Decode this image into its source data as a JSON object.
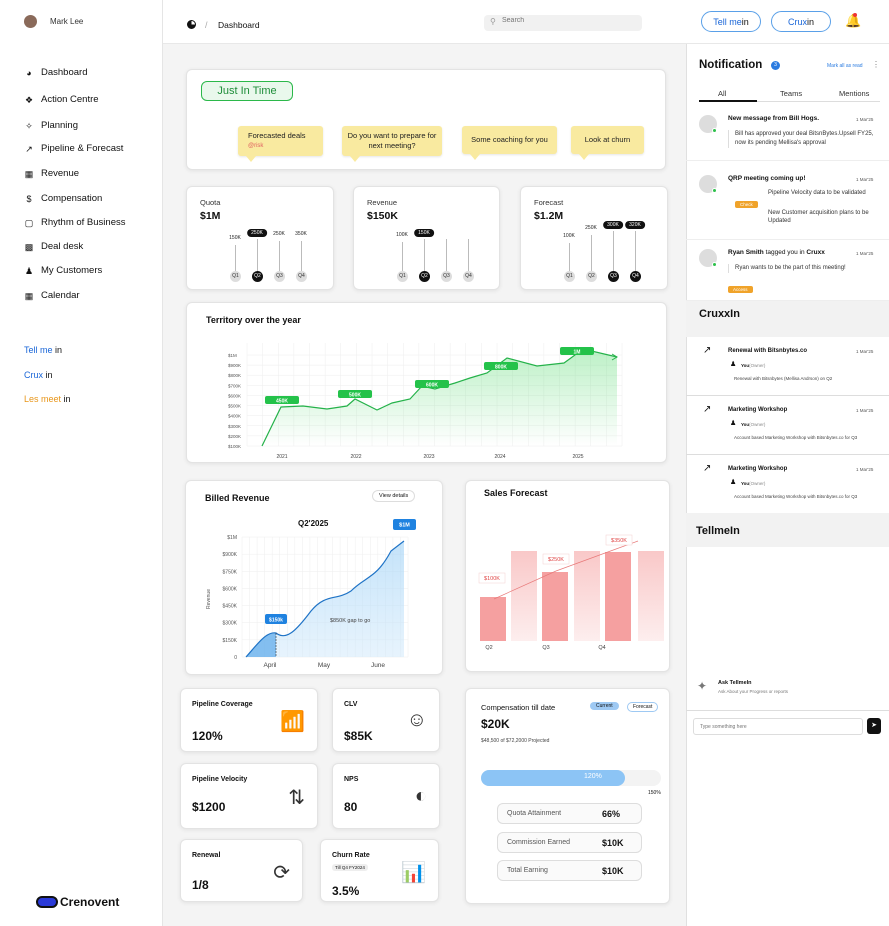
{
  "user": {
    "name": "Mark Lee"
  },
  "nav": [
    {
      "label": "Dashboard",
      "icon": "pie-icon"
    },
    {
      "label": "Action Centre",
      "icon": "action-icon"
    },
    {
      "label": "Planning",
      "icon": "planning-icon"
    },
    {
      "label": "Pipeline & Forecast",
      "icon": "trend-icon"
    },
    {
      "label": "Revenue",
      "icon": "revenue-icon"
    },
    {
      "label": "Compensation",
      "icon": "dollar-icon"
    },
    {
      "label": "Rhythm of Business",
      "icon": "rhythm-icon"
    },
    {
      "label": "Deal desk",
      "icon": "deal-icon"
    },
    {
      "label": "My Customers",
      "icon": "user-icon"
    },
    {
      "label": "Calendar",
      "icon": "calendar-icon"
    }
  ],
  "links": [
    {
      "a": "Tell me",
      "b": " in",
      "color": "#1a66d8"
    },
    {
      "a": "Crux",
      "b": " in",
      "color": "#1a66d8"
    },
    {
      "a": "Les meet",
      "b": " in",
      "color": "#e8961a"
    }
  ],
  "brand": "Crenovent",
  "breadcrumb": {
    "sep": "/",
    "page": "Dashboard"
  },
  "search": {
    "placeholder": "Search"
  },
  "top_buttons": [
    {
      "a": "Tell me",
      "b": " in"
    },
    {
      "a": "Crux",
      "b": " in"
    }
  ],
  "jit": {
    "title": "Just In Time",
    "notes": [
      {
        "text": "Forecasted deals",
        "sub": "@risk"
      },
      {
        "text": "Do you want to prepare for next meeting?"
      },
      {
        "text": "Some coaching for you"
      },
      {
        "text": "Look at churn"
      }
    ]
  },
  "quarters": [
    {
      "title": "Quota",
      "value": "$1M",
      "labels": [
        "150K",
        "250K",
        "250K",
        "350K"
      ],
      "active": 1
    },
    {
      "title": "Revenue",
      "value": "$150K",
      "labels": [
        "100K",
        "150K",
        "",
        ""
      ],
      "active": 1
    },
    {
      "title": "Forecast",
      "value": "$1.2M",
      "labels": [
        "100K",
        "250K",
        "300K",
        "320K"
      ],
      "active": 2
    }
  ],
  "qnames": [
    "Q1",
    "Q2",
    "Q3",
    "Q4"
  ],
  "territory": {
    "title": "Territory over the year",
    "years": [
      "2021",
      "2022",
      "2023",
      "2024",
      "2025"
    ],
    "yticks": [
      "$1M",
      "$900K",
      "$800K",
      "$700K",
      "$600K",
      "$500K",
      "$400K",
      "$300K",
      "$200K",
      "$100K"
    ],
    "badges": [
      "450K",
      "500K",
      "600K",
      "800K",
      "1M"
    ]
  },
  "billed": {
    "title": "Billed Revenue",
    "button": "View details",
    "period": "Q2'2025",
    "ylabel": "Revenue",
    "yticks": [
      "$1M",
      "$900K",
      "$750K",
      "$600K",
      "$450K",
      "$300K",
      "$150K",
      "0"
    ],
    "months": [
      "April",
      "May",
      "June"
    ],
    "b1": "$150k",
    "b2": "$1M",
    "gap": "$850K gap to go"
  },
  "forecast": {
    "title": "Sales Forecast",
    "labels": [
      "$100K",
      "$250K",
      "$350K"
    ],
    "qs": [
      "Q2",
      "Q3",
      "Q4"
    ]
  },
  "kpis": [
    {
      "title": "Pipeline Coverage",
      "value": "120%",
      "icon": "signal-icon"
    },
    {
      "title": "CLV",
      "value": "$85K",
      "icon": "customer-value-icon"
    },
    {
      "title": "Pipeline Velocity",
      "value": "$1200",
      "icon": "velocity-icon"
    },
    {
      "title": "NPS",
      "value": "80",
      "icon": "gauge-icon"
    },
    {
      "title": "Renewal",
      "value": "1/8",
      "icon": "renewal-icon"
    },
    {
      "title": "Churn Rate",
      "value": "3.5%",
      "tag": "Till Q4 FY2024",
      "icon": "churn-chart-icon"
    }
  ],
  "comp": {
    "title": "Compensation till date",
    "tabs": [
      "Current",
      "Forecast"
    ],
    "value": "$20K",
    "sub": "$48,500 of $72,2000 Projected",
    "bar": "120%",
    "max": "150%",
    "progress": 0.8,
    "rows": [
      {
        "k": "Quota Attainment",
        "v": "66%"
      },
      {
        "k": "Commission Earned",
        "v": "$10K"
      },
      {
        "k": "Total Earning",
        "v": "$10K"
      }
    ]
  },
  "notif": {
    "title": "Notification",
    "count": "3",
    "mark": "Mark all as read",
    "tabs": [
      "All",
      "Teams",
      "Mentions"
    ],
    "items": [
      {
        "title": "New message from Bill Hogs.",
        "time": "1 Mar'25",
        "body": "Bill has approved your deal BitsnBytes.Upsell FY25, now its pending Mellisa's approval"
      },
      {
        "title": "QRP meeting coming up!",
        "time": "1 Mar'25",
        "bullets": [
          "Pipeline Velocity data to be validated",
          "New Customer acquisition plans to be Updated"
        ],
        "btn": "Check"
      },
      {
        "title": "Ryan Smith",
        "mid": " tagged you in ",
        "ref": "Cruxx",
        "time": "1 Mar'25",
        "body": "Ryan wants to be the part of this meeting!",
        "btn": "Access"
      }
    ]
  },
  "cruxx": {
    "title": "CruxxIn",
    "items": [
      {
        "title": "Renewal with Bitsnbytes.co",
        "time": "1 Mar'25",
        "you": "You",
        "owner": "(Owner)",
        "bullet": "Renewal with Bitsnbytes (Mellisa Andrson) on Q2"
      },
      {
        "title": "Marketing Workshop",
        "time": "1 Mar'25",
        "you": "You",
        "owner": "(Owner)",
        "bullet": "Account based Marketing Workshop with Bitsnbytes.co for Q3"
      },
      {
        "title": "Marketing Workshop",
        "time": "1 Mar'25",
        "you": "You",
        "owner": "(Owner)",
        "bullet": "Account based Marketing Workshop with Bitsnbytes.co for Q3"
      }
    ]
  },
  "tellme": {
    "title": "TellmeIn",
    "ask": "Ask TellmeIn",
    "ask_sub": "Ask About your Progress or reports",
    "input_placeholder": "Type something here"
  }
}
